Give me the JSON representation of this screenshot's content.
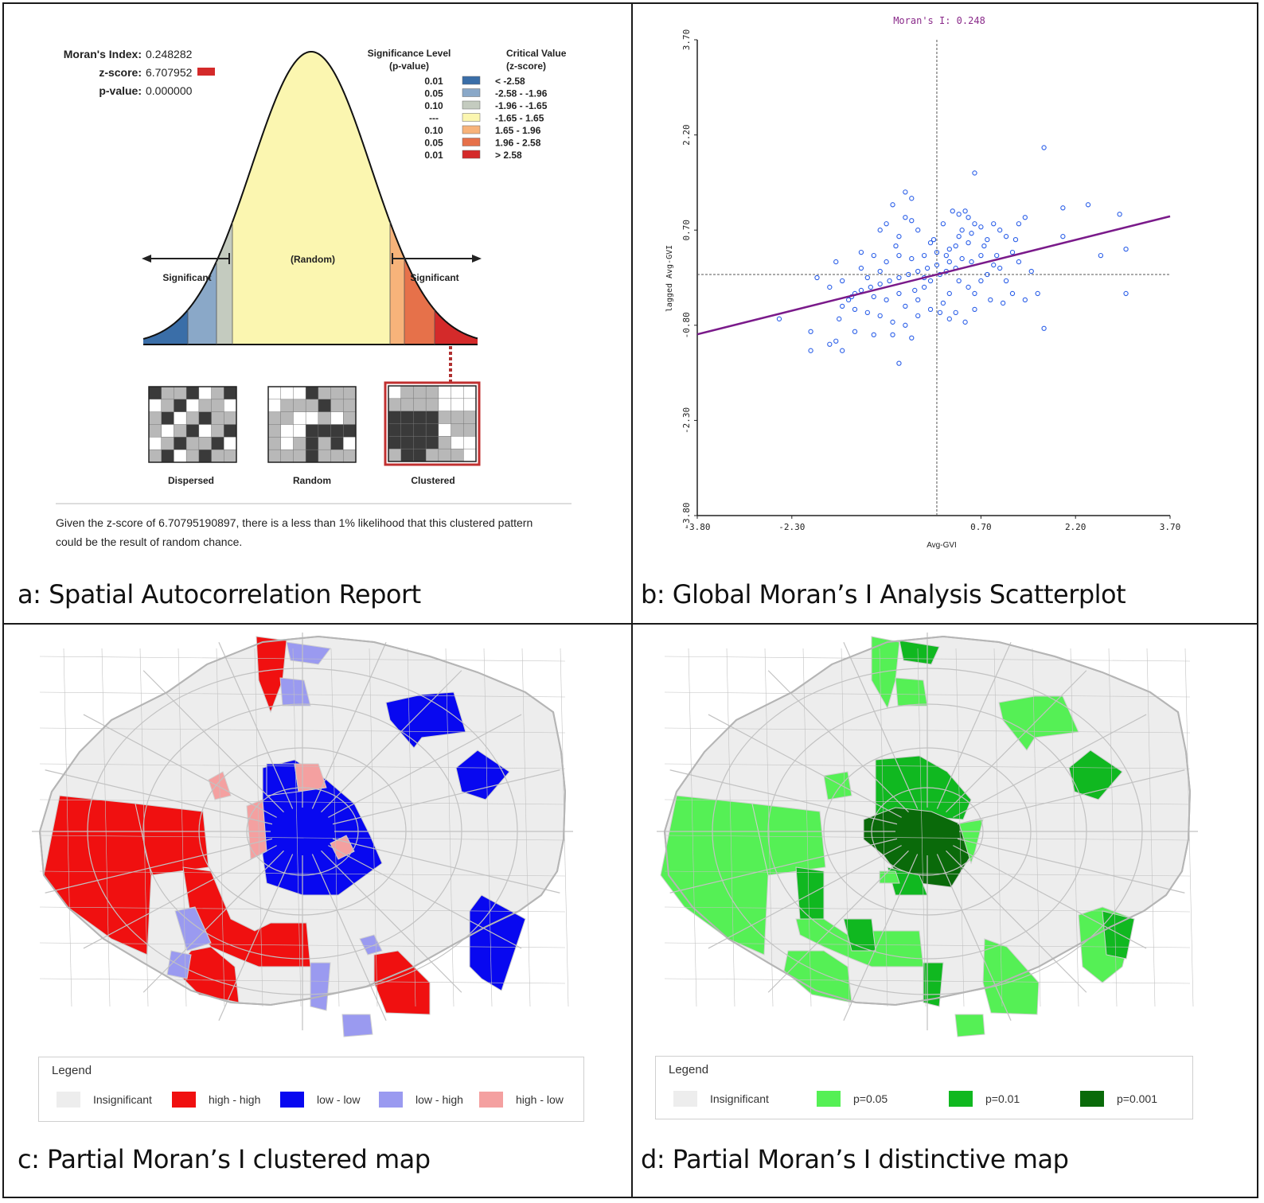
{
  "captions": {
    "a": "a: Spatial Autocorrelation Report",
    "b": "b: Global Moran’s I Analysis Scatterplot",
    "c": "c: Partial Moran’s I clustered map",
    "d": "d: Partial Moran’s I distinctive map"
  },
  "report": {
    "morans_index_label": "Moran's Index:",
    "morans_index_value": "0.248282",
    "z_score_label": "z-score:",
    "z_score_value": "6.707952",
    "p_value_label": "p-value:",
    "p_value_value": "0.000000",
    "sig_header_1": "Significance Level",
    "sig_header_2": "(p-value)",
    "crit_header_1": "Critical Value",
    "crit_header_2": "(z-score)",
    "table": [
      {
        "p": "0.01",
        "z": "< -2.58",
        "color": "#3a6ea8"
      },
      {
        "p": "0.05",
        "z": "-2.58 - -1.96",
        "color": "#8aa8c8"
      },
      {
        "p": "0.10",
        "z": "-1.96 - -1.65",
        "color": "#c4cbbf"
      },
      {
        "p": "---",
        "z": "-1.65 - 1.65",
        "color": "#fbf6b0"
      },
      {
        "p": "0.10",
        "z": "1.65 - 1.96",
        "color": "#f7b37a"
      },
      {
        "p": "0.05",
        "z": "1.96 - 2.58",
        "color": "#e6714a"
      },
      {
        "p": "0.01",
        "z": "> 2.58",
        "color": "#d42a2a"
      }
    ],
    "random_label": "(Random)",
    "significant_left": "Significant",
    "significant_right": "Significant",
    "pattern_dispersed": "Dispersed",
    "pattern_random": "Random",
    "pattern_clustered": "Clustered",
    "conclusion": "Given the z-score of 6.70795190897, there is a less than 1% likelihood that this clustered pattern could be the result of random chance."
  },
  "chart_data": {
    "type": "scatter",
    "title": "Moran's I: 0.248",
    "xlabel": "Avg-GVI",
    "ylabel": "lagged Avg-GVI",
    "xlim": [
      -3.8,
      3.7
    ],
    "ylim": [
      -3.8,
      3.7
    ],
    "xticks": [
      "-3.80",
      "-2.30",
      "0.70",
      "2.20",
      "3.70"
    ],
    "xtick_values": [
      -3.8,
      -2.3,
      0.7,
      2.2,
      3.7
    ],
    "yticks": [
      "-3.80",
      "-2.30",
      "-0.80",
      "0.70",
      "2.20",
      "3.70"
    ],
    "ytick_values": [
      -3.8,
      -2.3,
      -0.8,
      0.7,
      2.2,
      3.7
    ],
    "regression": {
      "slope": 0.248,
      "intercept": 0.0
    },
    "points": [
      [
        1.7,
        2.0
      ],
      [
        0.6,
        1.6
      ],
      [
        2.4,
        1.1
      ],
      [
        2.0,
        1.05
      ],
      [
        2.9,
        0.95
      ],
      [
        2.0,
        0.6
      ],
      [
        2.6,
        0.3
      ],
      [
        3.0,
        0.4
      ],
      [
        3.0,
        -0.3
      ],
      [
        1.7,
        -0.85
      ],
      [
        -0.5,
        1.3
      ],
      [
        -0.4,
        1.2
      ],
      [
        -0.7,
        1.1
      ],
      [
        -0.5,
        0.9
      ],
      [
        -0.4,
        0.85
      ],
      [
        -0.8,
        0.8
      ],
      [
        -0.3,
        0.7
      ],
      [
        -0.9,
        0.7
      ],
      [
        -0.6,
        0.6
      ],
      [
        -0.1,
        0.5
      ],
      [
        0.1,
        0.8
      ],
      [
        0.25,
        1.0
      ],
      [
        0.35,
        0.95
      ],
      [
        0.45,
        1.0
      ],
      [
        0.5,
        0.9
      ],
      [
        0.6,
        0.8
      ],
      [
        0.4,
        0.7
      ],
      [
        0.7,
        0.75
      ],
      [
        0.9,
        0.8
      ],
      [
        1.0,
        0.7
      ],
      [
        1.3,
        0.8
      ],
      [
        1.4,
        0.9
      ],
      [
        1.1,
        0.6
      ],
      [
        0.8,
        0.55
      ],
      [
        0.5,
        0.5
      ],
      [
        0.3,
        0.45
      ],
      [
        0.2,
        0.4
      ],
      [
        0.15,
        0.3
      ],
      [
        0.0,
        0.35
      ],
      [
        -0.2,
        0.3
      ],
      [
        -0.4,
        0.25
      ],
      [
        -0.6,
        0.3
      ],
      [
        -0.8,
        0.2
      ],
      [
        -1.2,
        0.35
      ],
      [
        -1.0,
        0.3
      ],
      [
        -1.2,
        0.1
      ],
      [
        -0.9,
        0.05
      ],
      [
        -1.1,
        -0.05
      ],
      [
        -1.6,
        0.2
      ],
      [
        -1.5,
        -0.1
      ],
      [
        -1.7,
        -0.2
      ],
      [
        -1.9,
        -0.05
      ],
      [
        -1.3,
        -0.3
      ],
      [
        -1.4,
        -0.4
      ],
      [
        -1.0,
        -0.35
      ],
      [
        -0.8,
        -0.4
      ],
      [
        -0.6,
        -0.3
      ],
      [
        -0.5,
        -0.5
      ],
      [
        -0.3,
        -0.4
      ],
      [
        -0.2,
        -0.2
      ],
      [
        -0.1,
        -0.1
      ],
      [
        0.05,
        0.0
      ],
      [
        0.15,
        0.05
      ],
      [
        0.3,
        0.1
      ],
      [
        0.35,
        -0.1
      ],
      [
        0.5,
        -0.2
      ],
      [
        0.6,
        -0.3
      ],
      [
        0.7,
        -0.1
      ],
      [
        0.8,
        0.0
      ],
      [
        0.9,
        0.15
      ],
      [
        1.0,
        0.1
      ],
      [
        1.1,
        -0.1
      ],
      [
        1.2,
        -0.3
      ],
      [
        1.4,
        -0.4
      ],
      [
        1.6,
        -0.3
      ],
      [
        1.5,
        0.05
      ],
      [
        1.3,
        0.2
      ],
      [
        1.2,
        0.35
      ],
      [
        0.95,
        0.3
      ],
      [
        0.7,
        0.3
      ],
      [
        0.55,
        0.2
      ],
      [
        0.4,
        0.25
      ],
      [
        0.2,
        0.2
      ],
      [
        0.0,
        0.15
      ],
      [
        -0.15,
        0.1
      ],
      [
        -0.3,
        0.05
      ],
      [
        -0.45,
        0.0
      ],
      [
        -0.6,
        -0.05
      ],
      [
        -0.75,
        -0.1
      ],
      [
        -0.9,
        -0.15
      ],
      [
        -1.05,
        -0.2
      ],
      [
        -1.2,
        -0.25
      ],
      [
        -1.35,
        -0.35
      ],
      [
        -1.5,
        -0.5
      ],
      [
        -1.55,
        -0.7
      ],
      [
        -1.3,
        -0.55
      ],
      [
        -1.1,
        -0.6
      ],
      [
        -0.9,
        -0.65
      ],
      [
        -0.7,
        -0.75
      ],
      [
        -0.5,
        -0.8
      ],
      [
        -0.3,
        -0.65
      ],
      [
        -0.1,
        -0.55
      ],
      [
        0.05,
        -0.6
      ],
      [
        0.2,
        -0.7
      ],
      [
        0.3,
        -0.6
      ],
      [
        0.45,
        -0.75
      ],
      [
        -1.6,
        -1.05
      ],
      [
        -1.5,
        -1.2
      ],
      [
        -1.3,
        -0.9
      ],
      [
        -1.0,
        -0.95
      ],
      [
        -0.6,
        -1.4
      ],
      [
        -0.7,
        -0.95
      ],
      [
        -0.4,
        -1.0
      ],
      [
        -2.0,
        -0.9
      ],
      [
        -2.5,
        -0.7
      ],
      [
        -2.0,
        -1.2
      ],
      [
        -1.7,
        -1.1
      ],
      [
        0.2,
        -0.3
      ],
      [
        -0.2,
        -0.05
      ],
      [
        -0.35,
        -0.25
      ],
      [
        0.1,
        -0.45
      ],
      [
        0.6,
        -0.55
      ],
      [
        0.85,
        -0.4
      ],
      [
        1.05,
        -0.45
      ],
      [
        -0.05,
        0.55
      ],
      [
        0.55,
        0.65
      ],
      [
        0.75,
        0.45
      ],
      [
        1.25,
        0.55
      ],
      [
        0.35,
        0.6
      ],
      [
        -0.65,
        0.45
      ]
    ]
  },
  "map_c": {
    "legend_title": "Legend",
    "items": [
      {
        "label": "Insignificant",
        "color": "#ededed"
      },
      {
        "label": "high - high",
        "color": "#f01010"
      },
      {
        "label": "low - low",
        "color": "#0808f0"
      },
      {
        "label": "low - high",
        "color": "#9a9af0"
      },
      {
        "label": "high - low",
        "color": "#f4a0a0"
      }
    ]
  },
  "map_d": {
    "legend_title": "Legend",
    "items": [
      {
        "label": "Insignificant",
        "color": "#ededed"
      },
      {
        "label": "p=0.05",
        "color": "#55f055"
      },
      {
        "label": "p=0.01",
        "color": "#10b820"
      },
      {
        "label": "p=0.001",
        "color": "#0a6a0a"
      }
    ]
  }
}
